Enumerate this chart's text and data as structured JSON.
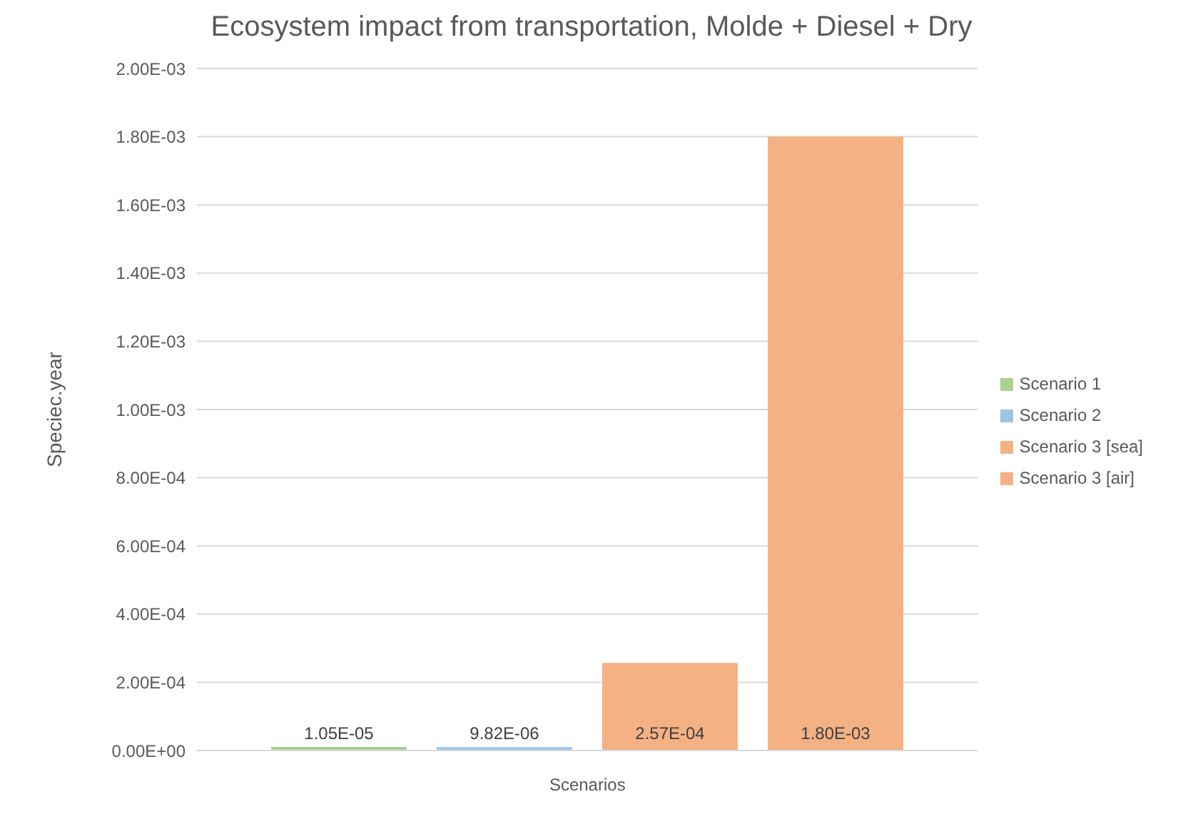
{
  "chart_data": {
    "type": "bar",
    "title": "Ecosystem impact from transportation, Molde + Diesel + Dry",
    "xlabel": "Scenarios",
    "ylabel": "Speciec.year",
    "categories": [
      null
    ],
    "series": [
      {
        "name": "Scenario 1",
        "color": "#a9d18e",
        "values": [
          1.05e-05
        ],
        "value_labels": [
          "1.05E-05"
        ]
      },
      {
        "name": "Scenario 2",
        "color": "#9dc3e6",
        "values": [
          9.82e-06
        ],
        "value_labels": [
          "9.82E-06"
        ]
      },
      {
        "name": "Scenario 3 [sea]",
        "color": "#f4b183",
        "values": [
          0.000257
        ],
        "value_labels": [
          "2.57E-04"
        ]
      },
      {
        "name": "Scenario 3 [air]",
        "color": "#f4b183",
        "values": [
          0.0018
        ],
        "value_labels": [
          "1.80E-03"
        ]
      }
    ],
    "ylim": [
      0,
      0.002
    ],
    "yticks": [
      {
        "value": 0,
        "label": "0.00E+00"
      },
      {
        "value": 0.0002,
        "label": "2.00E-04"
      },
      {
        "value": 0.0004,
        "label": "4.00E-04"
      },
      {
        "value": 0.0006,
        "label": "6.00E-04"
      },
      {
        "value": 0.0008,
        "label": "8.00E-04"
      },
      {
        "value": 0.001,
        "label": "1.00E-03"
      },
      {
        "value": 0.0012,
        "label": "1.20E-03"
      },
      {
        "value": 0.0014,
        "label": "1.40E-03"
      },
      {
        "value": 0.0016,
        "label": "1.60E-03"
      },
      {
        "value": 0.0018,
        "label": "1.80E-03"
      },
      {
        "value": 0.002,
        "label": "2.00E-03"
      }
    ],
    "grid": "y",
    "legend": "right"
  }
}
